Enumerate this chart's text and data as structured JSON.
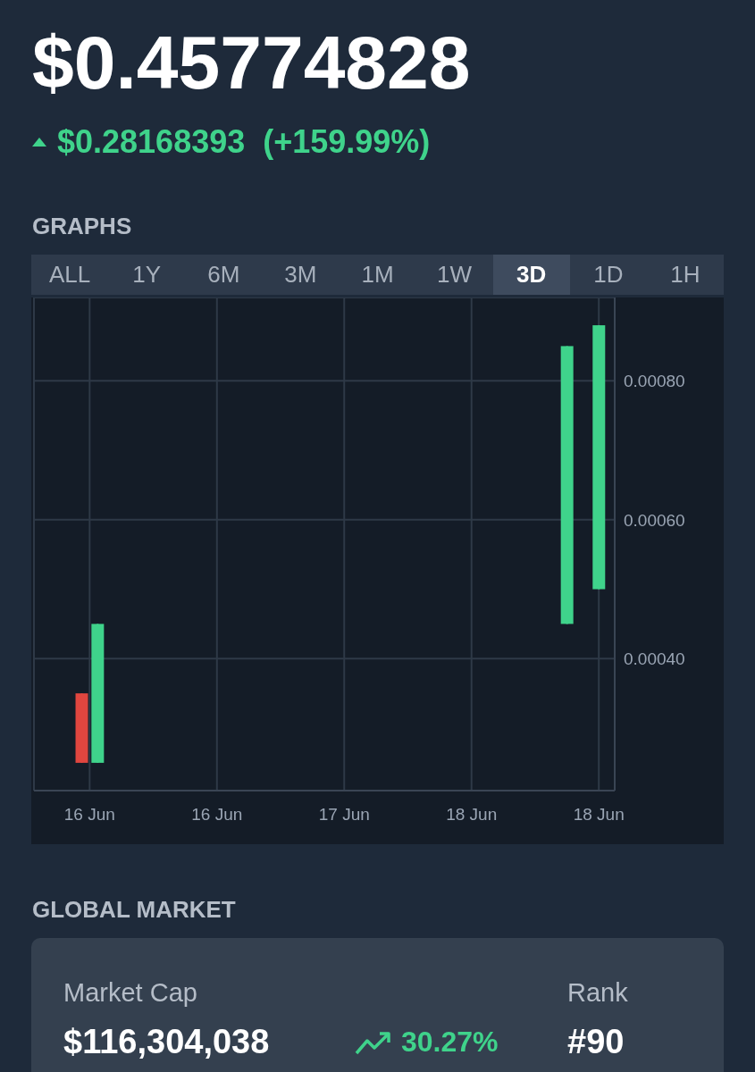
{
  "chart_data": {
    "type": "candlestick",
    "title": "$0.45774828",
    "subtitle": "$0.28168393  (+159.99%)",
    "annotations": [
      "GRAPHS",
      "ALL",
      "1Y",
      "6M",
      "3M",
      "1M",
      "1W",
      "3D",
      "1D",
      "1H",
      "GLOBAL MARKET",
      "Market Cap",
      "$116,304,038",
      "30.27%",
      "Rank",
      "#90"
    ],
    "x": [
      "--06-16T05:00",
      "--06-16T07:00",
      "--06-18T18:00",
      "--06-18T22:00"
    ],
    "ohlc": [
      [
        0.00035,
        0.00035,
        0.00025,
        0.00025
      ],
      [
        0.00025,
        0.00045,
        0.00025,
        0.00045
      ],
      [
        0.00045,
        0.00085,
        0.00045,
        0.00085
      ],
      [
        0.0005,
        0.00088,
        0.0005,
        0.00088
      ]
    ],
    "colors": [
      "#e0463f",
      "#3fd38b",
      "#3fd38b",
      "#3fd38b"
    ],
    "xlim": [
      "--06-15T23:00",
      "--06-19T00:00"
    ],
    "xticks": [
      {
        "value": "--06-16T06:00",
        "label": "16 Jun"
      },
      {
        "value": "--06-16T22:00",
        "label": "16 Jun"
      },
      {
        "value": "--06-17T14:00",
        "label": "17 Jun"
      },
      {
        "value": "--06-18T06:00",
        "label": "18 Jun"
      },
      {
        "value": "--06-18T22:00",
        "label": "18 Jun"
      }
    ],
    "ylim": [
      0.00021,
      0.00092
    ],
    "yticks": [
      {
        "value": 0.0004,
        "label": "0.00040"
      },
      {
        "value": 0.0006,
        "label": "0.00060"
      },
      {
        "value": 0.0008,
        "label": "0.00080"
      }
    ],
    "grid": true
  }
}
